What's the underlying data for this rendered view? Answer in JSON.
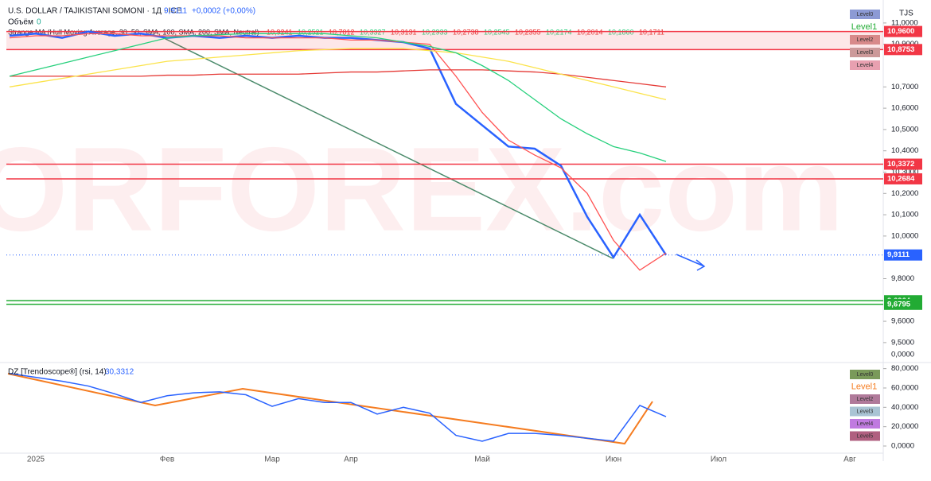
{
  "header": {
    "title": "U.S. DOLLAR / TAJIKISTANI SOMONI · 1Д · ICE",
    "price_text": "9,9111",
    "change_text": "+0,0002 (+0,00%)",
    "volume_label": "Объём",
    "volume_value": "0",
    "indicator": "Strange MA (Hull Moving Average, 30, 50, SMA, 100, SMA, 200, SMA, Neutral)",
    "indicator_values": [
      "10,9241",
      "10,2521",
      "10,7012",
      "10,3327",
      "10,3131",
      "10,2933",
      "10,2738",
      "10,2545",
      "10,2355",
      "10,2174",
      "10,2014",
      "10,1860",
      "10,1711"
    ],
    "currency": "TJS",
    "watermark": "TORFOREX.com"
  },
  "chart_data": [
    {
      "type": "line",
      "categories": [
        null,
        "2025",
        null,
        null,
        null,
        null,
        "Фев",
        null,
        null,
        null,
        "Мар",
        null,
        null,
        "Апр",
        null,
        null,
        null,
        null,
        "Май",
        null,
        null,
        null,
        null,
        "Июн",
        null,
        null,
        null,
        "Июл",
        null,
        null,
        null,
        null,
        "Авг"
      ],
      "series": [
        {
          "color": "#2962ff",
          "values": [
            10.94,
            10.95,
            10.93,
            10.96,
            10.94,
            10.95,
            10.93,
            10.94,
            10.93,
            10.94,
            10.93,
            10.94,
            10.93,
            10.93,
            10.92,
            10.91,
            10.88,
            10.62,
            10.52,
            10.42,
            10.41,
            10.33,
            10.09,
            9.9,
            10.1,
            9.9111,
            null,
            null,
            null,
            null,
            null,
            null,
            null
          ]
        },
        {
          "color": "#ff5252",
          "values": [
            10.93,
            10.94,
            10.94,
            10.95,
            10.95,
            10.94,
            10.94,
            10.94,
            10.94,
            10.93,
            10.93,
            10.93,
            10.93,
            10.92,
            10.92,
            10.91,
            10.9,
            10.75,
            10.58,
            10.45,
            10.38,
            10.32,
            10.2,
            9.98,
            9.84,
            9.92,
            null,
            null,
            null,
            null,
            null,
            null,
            null
          ]
        },
        {
          "color": "#e53935",
          "values": [
            10.75,
            10.75,
            10.75,
            10.75,
            10.75,
            10.75,
            10.755,
            10.755,
            10.76,
            10.76,
            10.76,
            10.76,
            10.765,
            10.77,
            10.77,
            10.775,
            10.78,
            10.78,
            10.78,
            10.775,
            10.77,
            10.76,
            10.745,
            10.73,
            10.715,
            10.7,
            null,
            null,
            null,
            null,
            null,
            null,
            null
          ]
        },
        {
          "color": "#fbe34a",
          "values": [
            10.7,
            10.72,
            10.74,
            10.76,
            10.78,
            10.8,
            10.82,
            10.83,
            10.84,
            10.85,
            10.86,
            10.87,
            10.875,
            10.88,
            10.88,
            10.88,
            10.87,
            10.86,
            10.84,
            10.82,
            10.79,
            10.76,
            10.73,
            10.7,
            10.67,
            10.64,
            null,
            null,
            null,
            null,
            null,
            null,
            null
          ]
        },
        {
          "color": "#26d07c",
          "values": [
            10.75,
            10.78,
            10.81,
            10.84,
            10.87,
            10.9,
            10.93,
            10.94,
            10.945,
            10.95,
            10.95,
            10.95,
            10.95,
            10.94,
            10.93,
            10.91,
            10.89,
            10.86,
            10.8,
            10.73,
            10.64,
            10.55,
            10.48,
            10.42,
            10.39,
            10.35,
            null,
            null,
            null,
            null,
            null,
            null,
            null
          ]
        }
      ],
      "ylim": [
        9.41,
        11.078
      ],
      "yticks": [
        {
          "value": 11,
          "label": "11,0000"
        },
        {
          "value": 10.9,
          "label": "10,9000"
        },
        {
          "value": 10.7,
          "label": "10,7000"
        },
        {
          "value": 10.6,
          "label": "10,6000"
        },
        {
          "value": 10.5,
          "label": "10,5000"
        },
        {
          "value": 10.4,
          "label": "10,4000"
        },
        {
          "value": 10.3,
          "label": "10,3000"
        },
        {
          "value": 10.2,
          "label": "10,2000"
        },
        {
          "value": 10.1,
          "label": "10,1000"
        },
        {
          "value": 10,
          "label": "10,0000"
        },
        {
          "value": 9.8,
          "label": "9,8000"
        },
        {
          "value": 9.6,
          "label": "9,6000"
        },
        {
          "value": 9.5,
          "label": "9,5000"
        }
      ],
      "axis_bottom_label": "0,0000",
      "levels": [
        {
          "value": 10.96,
          "label": "10,9600",
          "color": "#f23645"
        },
        {
          "value": 10.8753,
          "label": "10,8753",
          "color": "#f23645"
        },
        {
          "value": 10.3372,
          "label": "10,3372",
          "color": "#f23645"
        },
        {
          "value": 10.2684,
          "label": "10,2684",
          "color": "#f23645"
        },
        {
          "value": 9.6964,
          "label": "9,6964",
          "color": "#22ab34"
        },
        {
          "value": 9.6795,
          "label": "9,6795",
          "color": "#22ab34"
        }
      ],
      "last": {
        "value": 9.9111,
        "label": "9,9111",
        "color": "#2962ff"
      },
      "legend": [
        "Level0",
        "Level1",
        "Level2",
        "Level3",
        "Level4"
      ]
    },
    {
      "type": "line",
      "title": "DZ [Trendoscope®] (rsi, 14)",
      "value_text": "30,3312",
      "series": [
        {
          "color": "#2962ff",
          "values": [
            75,
            71,
            67,
            62,
            54,
            45,
            52,
            55,
            56,
            53,
            41,
            49,
            45,
            45,
            33,
            40,
            34,
            11,
            5,
            13,
            13,
            11,
            8,
            5,
            42,
            30.3312,
            null,
            null,
            null,
            null,
            null,
            null,
            null
          ]
        }
      ],
      "ylim": [
        -11.5,
        83
      ],
      "yticks": [
        {
          "value": 80,
          "label": "80,0000"
        },
        {
          "value": 60,
          "label": "60,0000"
        },
        {
          "value": 40,
          "label": "40,0000"
        },
        {
          "value": 20,
          "label": "20,0000"
        },
        {
          "value": 0,
          "label": "0,0000"
        }
      ],
      "legend": [
        "Level0",
        "Level1",
        "Level2",
        "Level3",
        "Level4",
        "Level5"
      ]
    }
  ]
}
